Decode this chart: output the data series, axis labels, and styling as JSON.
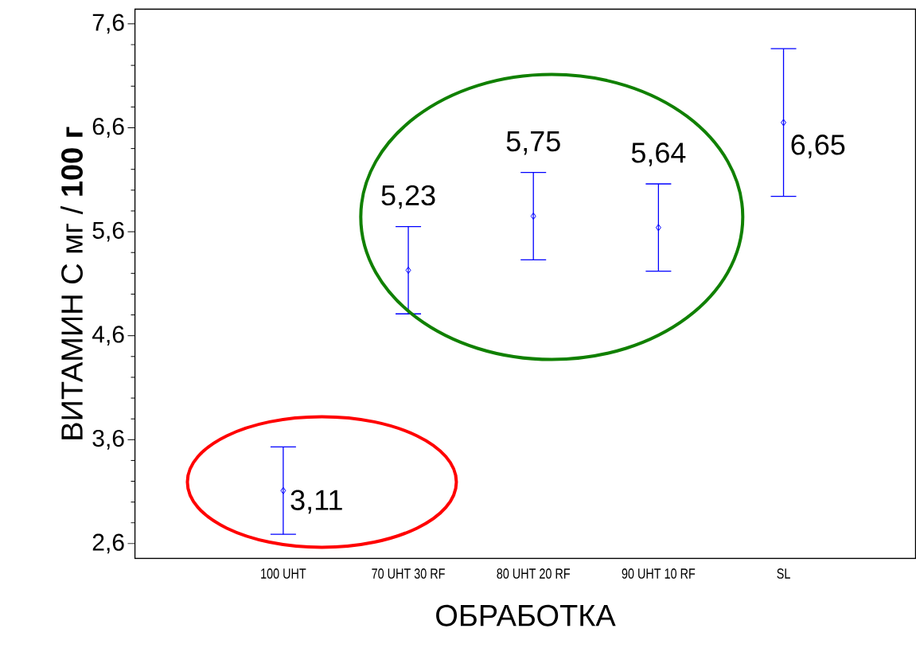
{
  "chart_data": {
    "type": "scatter",
    "xlabel": "ОБРАБОТКА",
    "ylabel": "ВИТАМИН С мг / **100 г**",
    "categories": [
      "100 UHT",
      "70 UHT 30 RF",
      "80 UHT 20 RF",
      "90 UHT 10 RF",
      "SL"
    ],
    "series": [
      {
        "color": "#0000ff",
        "values": [
          3.11,
          5.23,
          5.75,
          5.64,
          6.65
        ],
        "errors": [
          0.42,
          0.42,
          0.42,
          0.42,
          0.71
        ],
        "value_labels": [
          "3,11",
          "5,23",
          "5,75",
          "5,64",
          "6,65"
        ]
      }
    ],
    "marker": "diamond",
    "ylim": [
      2.457,
      7.74
    ],
    "yticks": [
      {
        "value": 2.6,
        "label": "2,6"
      },
      {
        "value": 3.6,
        "label": "3,6"
      },
      {
        "value": 4.6,
        "label": "4,6"
      },
      {
        "value": 5.6,
        "label": "5,6"
      },
      {
        "value": 6.6,
        "label": "6,6"
      },
      {
        "value": 7.6,
        "label": "7,6"
      }
    ],
    "grid": false
  }
}
